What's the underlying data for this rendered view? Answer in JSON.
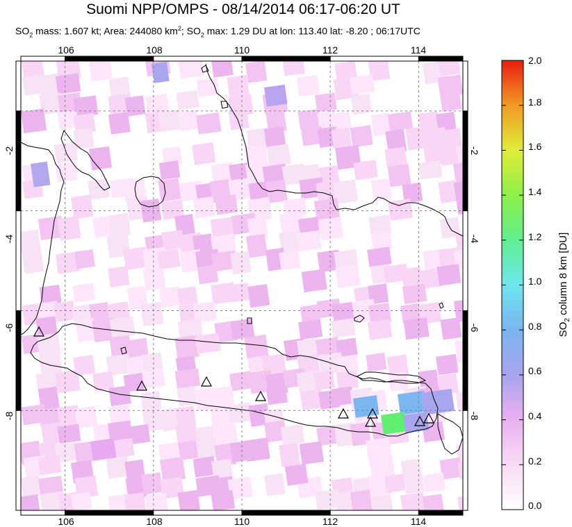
{
  "header": {
    "title": "Suomi NPP/OMPS - 08/14/2014 06:17-06:20 UT",
    "subtitle": {
      "mass_prefix": "SO",
      "mass_sub": "2",
      "mass_text": " mass: 1.607 kt; Area: 244080 km",
      "area_sup": "2",
      "max_prefix": "; SO",
      "max_sub": "2",
      "max_text": " max: 1.29 DU at lon: 113.40 lat: -8.20 ; 06:17UTC"
    }
  },
  "map": {
    "lon_range": [
      105,
      115
    ],
    "lat_range": [
      -10,
      -1
    ],
    "lon_ticks": [
      "106",
      "108",
      "110",
      "112",
      "114"
    ],
    "lat_ticks": [
      "-2",
      "-4",
      "-6",
      "-8"
    ],
    "volcano_count": 11
  },
  "colorbar": {
    "label_prefix": "SO",
    "label_sub": "2",
    "label_text": " column 8 km [DU]",
    "ticks": [
      "0.0",
      "0.2",
      "0.4",
      "0.6",
      "0.8",
      "1.0",
      "1.2",
      "1.4",
      "1.6",
      "1.8",
      "2.0"
    ],
    "range": [
      0,
      2.0
    ],
    "colors": [
      "#ffffff",
      "#f9cdf5",
      "#e7a9f0",
      "#a7a6ee",
      "#7ab6f0",
      "#6de8ee",
      "#5fee8c",
      "#7ff04b",
      "#d7ee3c",
      "#f5c028",
      "#f07820",
      "#e82a12"
    ]
  }
}
